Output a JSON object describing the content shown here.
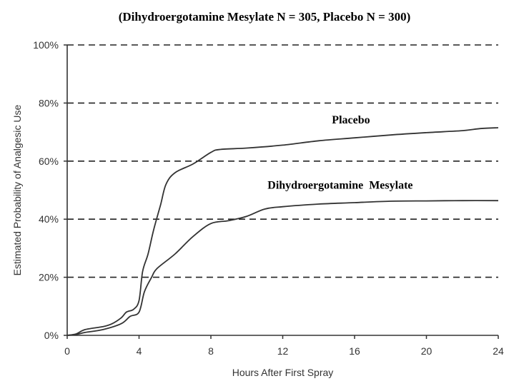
{
  "chart_data": {
    "type": "line",
    "title": "(Dihydroergotamine  Mesylate N = 305, Placebo N = 300)",
    "xlabel": "Hours After First Spray",
    "ylabel": "Estimated Probability of Analgesic Use",
    "xlim": [
      0,
      24
    ],
    "ylim": [
      0,
      100
    ],
    "x_ticks": [
      "0",
      "4",
      "8",
      "12",
      "16",
      "20",
      "24"
    ],
    "y_ticks": [
      "0%",
      "20%",
      "40%",
      "60%",
      "80%",
      "100%"
    ],
    "grid": "horizontal dashed",
    "series": [
      {
        "name": "Placebo",
        "color": "#333333",
        "points": [
          [
            0,
            0
          ],
          [
            0.5,
            0.5
          ],
          [
            1,
            2
          ],
          [
            2,
            3
          ],
          [
            2.5,
            4
          ],
          [
            3,
            6
          ],
          [
            3.3,
            8
          ],
          [
            3.7,
            9
          ],
          [
            4,
            12
          ],
          [
            4.2,
            22
          ],
          [
            4.5,
            28
          ],
          [
            4.8,
            36
          ],
          [
            5.2,
            45
          ],
          [
            5.5,
            52
          ],
          [
            6,
            56
          ],
          [
            7,
            59
          ],
          [
            8,
            63
          ],
          [
            8.5,
            64
          ],
          [
            10,
            64.5
          ],
          [
            12,
            65.5
          ],
          [
            14,
            67
          ],
          [
            16,
            68
          ],
          [
            18,
            69
          ],
          [
            20,
            69.8
          ],
          [
            22,
            70.5
          ],
          [
            23,
            71.2
          ],
          [
            24,
            71.5
          ]
        ]
      },
      {
        "name": "Dihydroergotamine  Mesylate",
        "color": "#333333",
        "points": [
          [
            0,
            0
          ],
          [
            0.5,
            0.3
          ],
          [
            1,
            1
          ],
          [
            2,
            2
          ],
          [
            3,
            4
          ],
          [
            3.5,
            6.5
          ],
          [
            4,
            8
          ],
          [
            4.3,
            15
          ],
          [
            4.7,
            20
          ],
          [
            5,
            23
          ],
          [
            6,
            28
          ],
          [
            7,
            34
          ],
          [
            8,
            38.5
          ],
          [
            9,
            39.5
          ],
          [
            10,
            41
          ],
          [
            11,
            43.5
          ],
          [
            12,
            44.3
          ],
          [
            14,
            45.2
          ],
          [
            16,
            45.7
          ],
          [
            18,
            46.2
          ],
          [
            20,
            46.3
          ],
          [
            22,
            46.4
          ],
          [
            24,
            46.4
          ]
        ]
      }
    ],
    "annotations": [
      {
        "text": "Placebo",
        "x": 15.8,
        "y": 73
      },
      {
        "text": "Dihydroergotamine  Mesylate",
        "x": 15.2,
        "y": 50.5
      }
    ]
  }
}
